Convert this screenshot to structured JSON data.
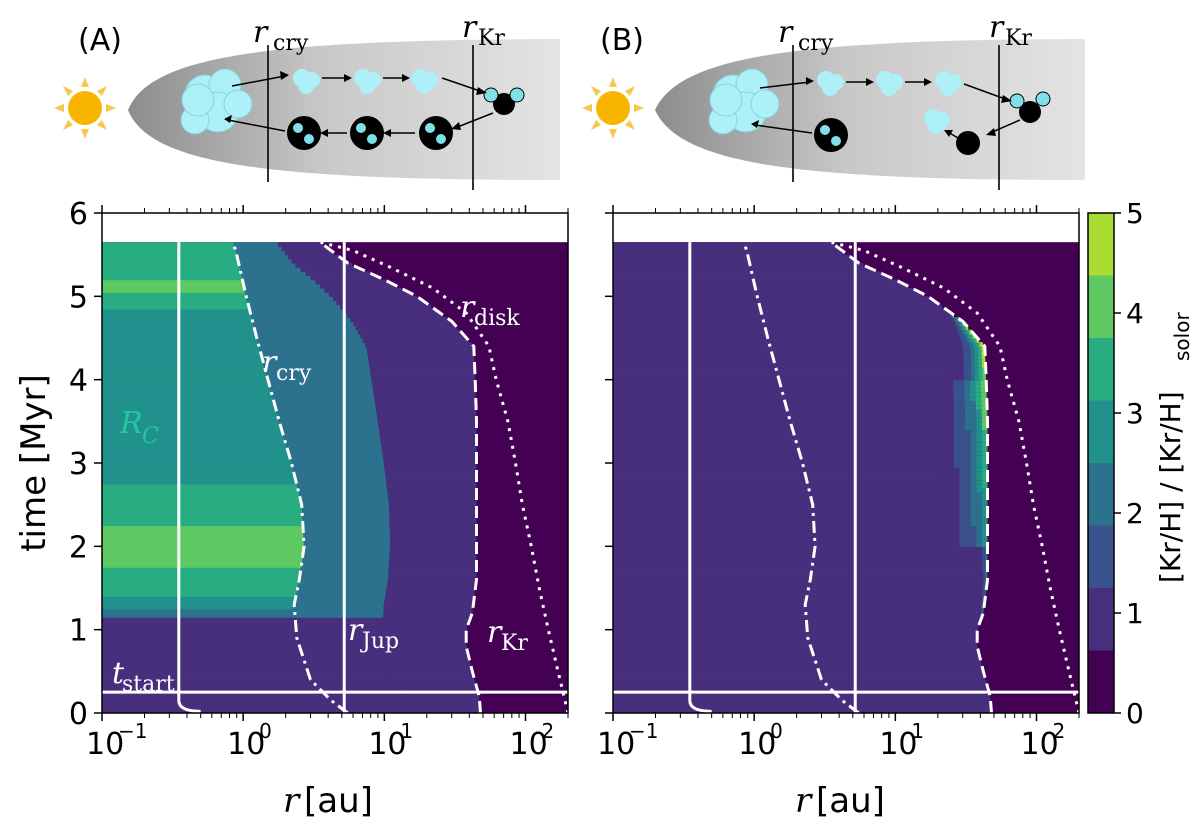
{
  "chart_data": [
    {
      "type": "heatmap",
      "panel_label": "(A)",
      "xlabel_main": "r",
      "xlabel_unit": "[au]",
      "ylabel": "time [Myr]",
      "xscale": "log",
      "xlim": [
        0.1,
        200
      ],
      "ylim": [
        0,
        6
      ],
      "x_ticks": [
        {
          "base": "10",
          "exp": "−1"
        },
        {
          "base": "10",
          "exp": "0"
        },
        {
          "base": "10",
          "exp": "1"
        },
        {
          "base": "10",
          "exp": "2"
        }
      ],
      "y_ticks": [
        "0",
        "1",
        "2",
        "3",
        "4",
        "5",
        "6"
      ],
      "time_max": 5.65,
      "t_start": 0.25,
      "r_C": 0.35,
      "r_Jup": 5.2,
      "bands_inner": [
        {
          "t0": 0.0,
          "t1": 1.15,
          "value": 0.9
        },
        {
          "t0": 1.15,
          "t1": 1.25,
          "value": 2.2
        },
        {
          "t0": 1.25,
          "t1": 1.4,
          "value": 2.7
        },
        {
          "t0": 1.4,
          "t1": 1.6,
          "value": 3.3
        },
        {
          "t0": 1.6,
          "t1": 1.75,
          "value": 3.7
        },
        {
          "t0": 1.75,
          "t1": 2.25,
          "value": 4.1
        },
        {
          "t0": 2.25,
          "t1": 2.45,
          "value": 3.7
        },
        {
          "t0": 2.45,
          "t1": 2.75,
          "value": 3.3
        },
        {
          "t0": 2.75,
          "t1": 4.85,
          "value": 2.7
        },
        {
          "t0": 4.85,
          "t1": 5.05,
          "value": 3.3
        },
        {
          "t0": 5.05,
          "t1": 5.2,
          "value": 4.1
        },
        {
          "t0": 5.2,
          "t1": 5.3,
          "value": 3.3
        },
        {
          "t0": 5.3,
          "t1": 5.65,
          "value": 3.3
        }
      ],
      "labels": {
        "r_C": {
          "main": "R",
          "sub": "C"
        },
        "r_cry": {
          "main": "r",
          "sub": "cry"
        },
        "r_Jup": {
          "main": "r",
          "sub": "Jup"
        },
        "r_Kr": {
          "main": "r",
          "sub": "Kr"
        },
        "r_disk": {
          "main": "r",
          "sub": "disk"
        },
        "t_start": {
          "main": "t",
          "sub": "start"
        }
      },
      "diagram": {
        "r_cry_label": {
          "main": "r",
          "sub": "cry"
        },
        "r_Kr_label": {
          "main": "r",
          "sub": "Kr"
        }
      }
    },
    {
      "type": "heatmap",
      "panel_label": "(B)",
      "xlabel_main": "r",
      "xlabel_unit": "[au]",
      "xscale": "log",
      "xlim": [
        0.1,
        200
      ],
      "ylim": [
        0,
        6
      ],
      "x_ticks": [
        {
          "base": "10",
          "exp": "−1"
        },
        {
          "base": "10",
          "exp": "0"
        },
        {
          "base": "10",
          "exp": "1"
        },
        {
          "base": "10",
          "exp": "2"
        }
      ],
      "background_value": 0.9,
      "peak_value": 5,
      "peak_location_au": 46,
      "diagram": {
        "r_cry_label": {
          "main": "r",
          "sub": "cry"
        },
        "r_Kr_label": {
          "main": "r",
          "sub": "Kr"
        }
      }
    }
  ],
  "colorbar": {
    "label_main": "[Kr/H] / [Kr/H]",
    "label_sub": "solor",
    "range": [
      0,
      5
    ],
    "levels": [
      0,
      0.625,
      1.25,
      1.875,
      2.5,
      3.125,
      3.75,
      4.375,
      5
    ],
    "colors": [
      "#440154",
      "#472f7d",
      "#3a528b",
      "#2c728e",
      "#21918c",
      "#27ad81",
      "#5ec962",
      "#aadc32",
      "#fde725"
    ],
    "ticks": [
      "0",
      "1",
      "2",
      "3",
      "4",
      "5"
    ]
  },
  "colors": {
    "disk_dark": "#8a8a8a",
    "disk_light": "#e6e6e6",
    "sun": "#f7b500",
    "ice": "#aef0f7",
    "line": "#ffffff",
    "black": "#000000"
  }
}
